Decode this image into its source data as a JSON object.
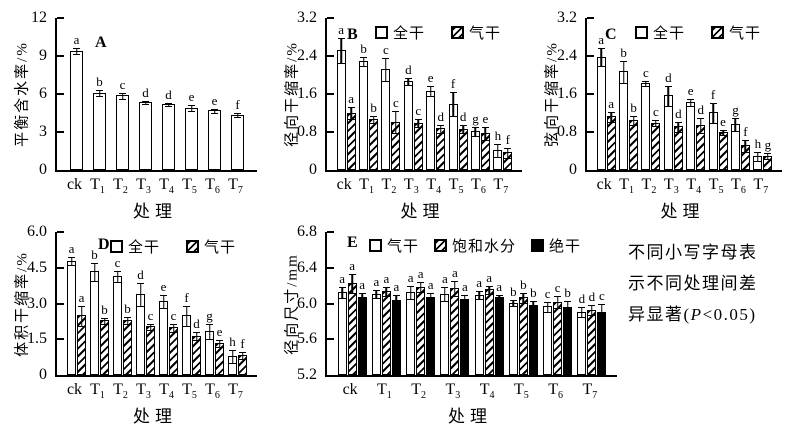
{
  "note": {
    "lines": [
      "不同小写字母表",
      "示不同处理间差",
      "异显著(P<0.05)"
    ]
  },
  "chart_data": [
    {
      "id": "A",
      "type": "bar",
      "panel_label": "A",
      "xlabel": "处理",
      "ylabel": "平衡含水率/%",
      "ylim": [
        0,
        12
      ],
      "yticks": [
        "0",
        "3",
        "6",
        "9",
        "12"
      ],
      "categories": [
        "ck",
        "T1",
        "T2",
        "T3",
        "T4",
        "T5",
        "T6",
        "T7"
      ],
      "legend": [],
      "series": [
        {
          "name": "平衡含水率",
          "style": "white",
          "values": [
            9.4,
            6.1,
            5.9,
            5.35,
            5.25,
            4.9,
            4.7,
            4.35
          ],
          "errors": [
            0.2,
            0.2,
            0.2,
            0.07,
            0.07,
            0.2,
            0.15,
            0.12
          ],
          "letters": [
            "a",
            "b",
            "c",
            "d",
            "d",
            "e",
            "e",
            "f"
          ]
        }
      ]
    },
    {
      "id": "B",
      "type": "bar",
      "panel_label": "B",
      "xlabel": "处理",
      "ylabel": "径向干缩率/%",
      "ylim": [
        0,
        3.2
      ],
      "yticks": [
        "0",
        "0.8",
        "1.6",
        "2.4",
        "3.2"
      ],
      "categories": [
        "ck",
        "T1",
        "T2",
        "T3",
        "T4",
        "T5",
        "T6",
        "T7"
      ],
      "legend": [
        {
          "label": "全干",
          "style": "white"
        },
        {
          "label": "气干",
          "style": "hatch"
        }
      ],
      "series": [
        {
          "name": "全干",
          "style": "white",
          "values": [
            2.52,
            2.3,
            2.13,
            1.87,
            1.67,
            1.4,
            0.82,
            0.42
          ],
          "errors": [
            0.25,
            0.08,
            0.23,
            0.07,
            0.1,
            0.25,
            0.08,
            0.13
          ],
          "letters": [
            "a",
            "b",
            "c",
            "d",
            "e",
            "f",
            "g",
            "h"
          ]
        },
        {
          "name": "气干",
          "style": "hatch",
          "values": [
            1.21,
            1.08,
            1.02,
            1.0,
            0.88,
            0.87,
            0.78,
            0.37
          ],
          "errors": [
            0.12,
            0.06,
            0.22,
            0.08,
            0.07,
            0.08,
            0.12,
            0.1
          ],
          "letters": [
            "a",
            "b",
            "c",
            "c",
            "d",
            "d",
            "e",
            "f"
          ]
        }
      ]
    },
    {
      "id": "C",
      "type": "bar",
      "panel_label": "C",
      "xlabel": "处理",
      "ylabel": "弦向干缩率/%",
      "ylim": [
        0,
        3.2
      ],
      "yticks": [
        "0",
        "0.8",
        "1.6",
        "2.4",
        "3.2"
      ],
      "categories": [
        "ck",
        "T1",
        "T2",
        "T3",
        "T4",
        "T5",
        "T6",
        "T7"
      ],
      "legend": [
        {
          "label": "全干",
          "style": "white"
        },
        {
          "label": "气干",
          "style": "hatch"
        }
      ],
      "series": [
        {
          "name": "全干",
          "style": "white",
          "values": [
            2.38,
            2.08,
            1.83,
            1.57,
            1.43,
            1.22,
            0.97,
            0.3
          ],
          "errors": [
            0.18,
            0.22,
            0.04,
            0.2,
            0.07,
            0.2,
            0.12,
            0.08
          ],
          "letters": [
            "a",
            "b",
            "c",
            "d",
            "e",
            "f",
            "g",
            "h"
          ]
        },
        {
          "name": "气干",
          "style": "hatch",
          "values": [
            1.13,
            1.05,
            1.0,
            0.92,
            0.95,
            0.8,
            0.52,
            0.3
          ],
          "errors": [
            0.1,
            0.08,
            0.05,
            0.1,
            0.15,
            0.05,
            0.12,
            0.05
          ],
          "letters": [
            "a",
            "b",
            "c",
            "d",
            "d",
            "e",
            "f",
            "g"
          ]
        }
      ]
    },
    {
      "id": "D",
      "type": "bar",
      "panel_label": "D",
      "xlabel": "处理",
      "ylabel": "体积干缩率/%",
      "ylim": [
        0,
        6
      ],
      "yticks": [
        "0",
        "1.5",
        "3.0",
        "4.5",
        "6.0"
      ],
      "categories": [
        "ck",
        "T1",
        "T2",
        "T3",
        "T4",
        "T5",
        "T6",
        "T7"
      ],
      "legend": [
        {
          "label": "全干",
          "style": "white"
        },
        {
          "label": "气干",
          "style": "hatch"
        }
      ],
      "series": [
        {
          "name": "全干",
          "style": "white",
          "values": [
            4.8,
            4.35,
            4.15,
            3.4,
            3.1,
            2.5,
            1.85,
            0.8
          ],
          "errors": [
            0.15,
            0.35,
            0.2,
            0.45,
            0.25,
            0.4,
            0.3,
            0.25
          ],
          "letters": [
            "a",
            "b",
            "c",
            "d",
            "e",
            "f",
            "g",
            "h"
          ]
        },
        {
          "name": "气干",
          "style": "hatch",
          "values": [
            2.5,
            2.3,
            2.3,
            2.05,
            2.0,
            1.65,
            1.35,
            0.85
          ],
          "errors": [
            0.4,
            0.1,
            0.12,
            0.1,
            0.15,
            0.15,
            0.12,
            0.12
          ],
          "letters": [
            "a",
            "b",
            "b",
            "c",
            "c",
            "d",
            "e",
            "f"
          ]
        }
      ]
    },
    {
      "id": "E",
      "type": "bar",
      "panel_label": "E",
      "xlabel": "处理",
      "ylabel": "径向尺寸/mm",
      "ylim": [
        5.2,
        6.8
      ],
      "yticks": [
        "5.2",
        "5.6",
        "6.0",
        "6.4",
        "6.8"
      ],
      "categories": [
        "ck",
        "T1",
        "T2",
        "T3",
        "T4",
        "T5",
        "T6",
        "T7"
      ],
      "legend": [
        {
          "label": "气干",
          "style": "white"
        },
        {
          "label": "饱和水分",
          "style": "hatch"
        },
        {
          "label": "绝干",
          "style": "solid"
        }
      ],
      "series": [
        {
          "name": "气干",
          "style": "white",
          "values": [
            6.13,
            6.11,
            6.13,
            6.11,
            6.1,
            6.01,
            5.97,
            5.91
          ],
          "errors": [
            0.06,
            0.04,
            0.07,
            0.07,
            0.04,
            0.03,
            0.05,
            0.05
          ],
          "letters": [
            "a",
            "a",
            "a",
            "a",
            "a",
            "b",
            "c",
            "d"
          ]
        },
        {
          "name": "饱和水分",
          "style": "hatch",
          "values": [
            6.23,
            6.14,
            6.19,
            6.17,
            6.16,
            6.07,
            6.02,
            5.93
          ],
          "errors": [
            0.1,
            0.05,
            0.05,
            0.08,
            0.04,
            0.05,
            0.06,
            0.05
          ],
          "letters": [
            "a",
            "a",
            "a",
            "a",
            "a",
            "b",
            "c",
            "d"
          ]
        },
        {
          "name": "绝干",
          "style": "solid",
          "values": [
            6.07,
            6.04,
            6.07,
            6.05,
            6.07,
            5.98,
            5.96,
            5.91
          ],
          "errors": [
            0.05,
            0.05,
            0.05,
            0.05,
            0.03,
            0.05,
            0.07,
            0.08
          ],
          "letters": [
            "a",
            "a",
            "a",
            "a",
            "a",
            "b",
            "b",
            "c"
          ]
        }
      ]
    }
  ]
}
